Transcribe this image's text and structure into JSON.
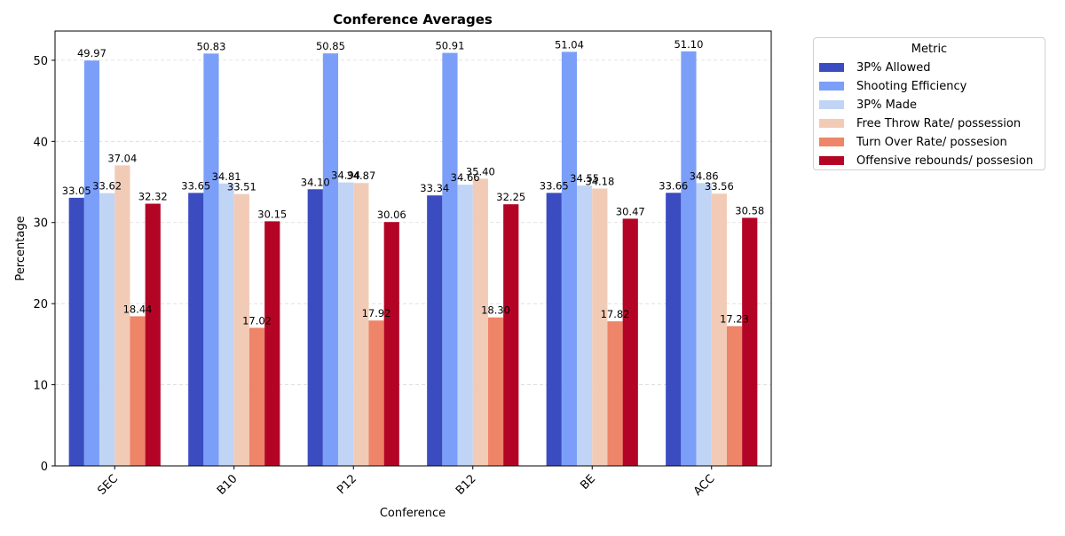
{
  "chart_data": {
    "type": "bar",
    "title": "Conference Averages",
    "xlabel": "Conference",
    "ylabel": "Percentage",
    "ylim": [
      0,
      53.6
    ],
    "yticks": [
      0,
      10,
      20,
      30,
      40,
      50
    ],
    "grid": true,
    "legend_title": "Metric",
    "legend_position": "outside-top-right",
    "categories": [
      "SEC",
      "B10",
      "P12",
      "B12",
      "BE",
      "ACC"
    ],
    "series": [
      {
        "name": "3P% Allowed",
        "color": "#3b4cc0",
        "values": [
          33.05,
          33.65,
          34.1,
          33.34,
          33.65,
          33.66
        ],
        "labels": [
          "33.05",
          "33.65",
          "34.10",
          "33.34",
          "33.65",
          "33.66"
        ]
      },
      {
        "name": "Shooting Efficiency",
        "color": "#7b9ff9",
        "values": [
          49.97,
          50.83,
          50.85,
          50.91,
          51.04,
          51.1
        ],
        "labels": [
          "49.97",
          "50.83",
          "50.85",
          "50.91",
          "51.04",
          "51.10"
        ]
      },
      {
        "name": "3P% Made",
        "color": "#c0d4f5",
        "values": [
          33.62,
          34.81,
          34.94,
          34.66,
          34.55,
          34.86
        ],
        "labels": [
          "33.62",
          "34.81",
          "34.94",
          "34.66",
          "34.55",
          "34.86"
        ]
      },
      {
        "name": "Free Throw Rate/ possession",
        "color": "#f2cbb7",
        "values": [
          37.04,
          33.51,
          34.87,
          35.4,
          34.18,
          33.56
        ],
        "labels": [
          "37.04",
          "33.51",
          "34.87",
          "35.40",
          "34.18",
          "33.56"
        ]
      },
      {
        "name": "Turn Over Rate/ possesion",
        "color": "#ee8468",
        "values": [
          18.44,
          17.02,
          17.92,
          18.3,
          17.82,
          17.23
        ],
        "labels": [
          "18.44",
          "17.02",
          "17.92",
          "18.30",
          "17.82",
          "17.23"
        ]
      },
      {
        "name": "Offensive rebounds/ possesion",
        "color": "#b40426",
        "values": [
          32.32,
          30.15,
          30.06,
          32.25,
          30.47,
          30.58
        ],
        "labels": [
          "32.32",
          "30.15",
          "30.06",
          "32.25",
          "30.47",
          "30.58"
        ]
      }
    ]
  }
}
